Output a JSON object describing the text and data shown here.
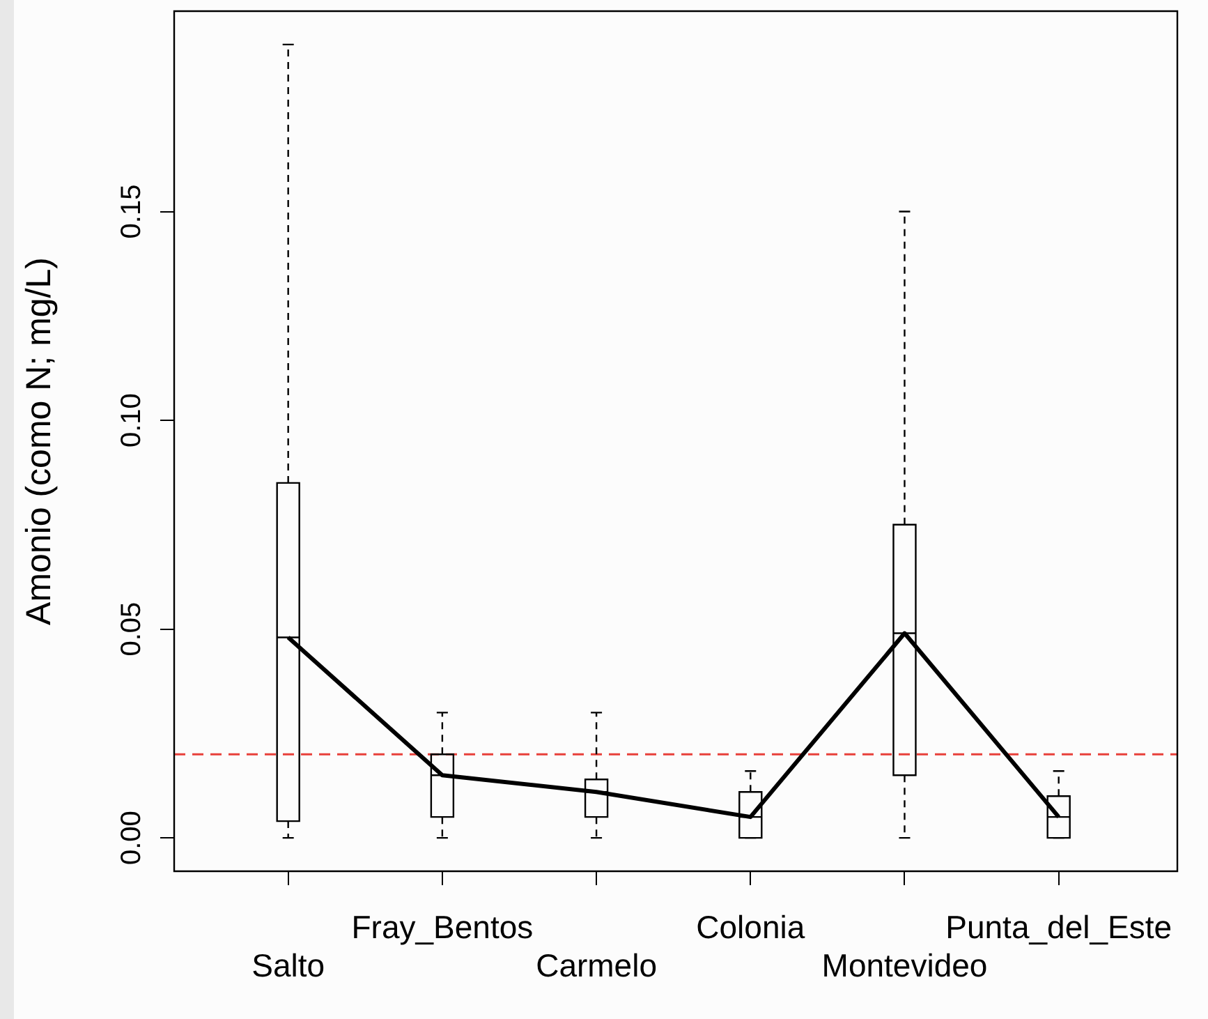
{
  "chart_data": {
    "type": "box",
    "ylabel": "Amonio (como N; mg/L)",
    "categories": [
      "Salto",
      "Fray_Bentos",
      "Carmelo",
      "Colonia",
      "Montevideo",
      "Punta_del_Este"
    ],
    "series": [
      {
        "type": "box",
        "color": "#000000",
        "boxes": [
          {
            "low": 0,
            "q1": 0.004,
            "median": 0.048,
            "q3": 0.085,
            "high": 0.19
          },
          {
            "low": 0,
            "q1": 0.005,
            "median": 0.015,
            "q3": 0.02,
            "high": 0.03
          },
          {
            "low": 0,
            "q1": 0.005,
            "median": 0.011,
            "q3": 0.014,
            "high": 0.03
          },
          {
            "low": 0,
            "q1": 0,
            "median": 0.005,
            "q3": 0.011,
            "high": 0.016
          },
          {
            "low": 0,
            "q1": 0.015,
            "median": 0.049,
            "q3": 0.075,
            "high": 0.15
          },
          {
            "low": 0,
            "q1": 0,
            "median": 0.005,
            "q3": 0.01,
            "high": 0.016
          }
        ]
      },
      {
        "type": "line",
        "color": "#000000",
        "values": [
          0.048,
          0.015,
          0.011,
          0.005,
          0.049,
          0.005
        ]
      }
    ],
    "ylim": [
      -0.008,
      0.198
    ],
    "yticks": [
      {
        "value": 0,
        "label": "0.00"
      },
      {
        "value": 0.05,
        "label": "0.05"
      },
      {
        "value": 0.1,
        "label": "0.10"
      },
      {
        "value": 0.15,
        "label": "0.15"
      }
    ],
    "ref_lines": [
      {
        "axis": "y",
        "value": 0.02,
        "color": "#e8403a",
        "line_style": "dashed"
      }
    ],
    "grid": false,
    "legend": false,
    "marker": "none",
    "line_style": "solid"
  }
}
